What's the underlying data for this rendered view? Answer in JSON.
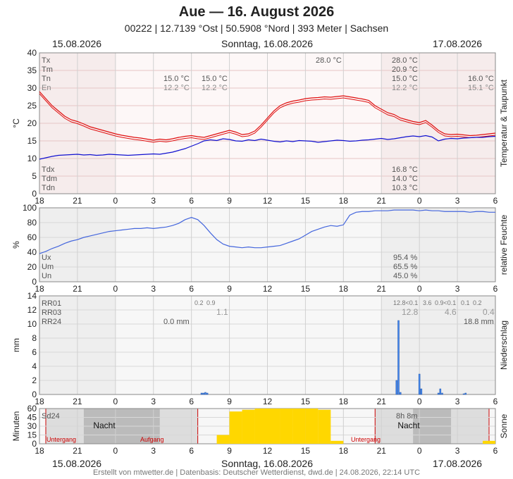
{
  "header": {
    "title": "Aue  —  16. August 2026",
    "subtitle": "00222  |  12.7139 °Ost  |  50.5908 °Nord  |  393 Meter  |  Sachsen",
    "date_left": "15.08.2026",
    "date_center": "Sonntag, 16.08.2026",
    "date_right": "17.08.2026"
  },
  "footer": "Erstellt von mtwetter.de | Datenbasis: Deutscher Wetterdienst, dwd.de | 24.08.2026, 22:14 UTC",
  "colors": {
    "temp": "#e01010",
    "dew": "#1010d0",
    "hum": "#4466dd",
    "rain": "#4488ee",
    "sun": "#ffd700",
    "border_red": "#cc0000"
  },
  "chart_data": [
    {
      "type": "line",
      "id": "temp",
      "ylabel": "°C",
      "ylabel_right": "Temperatur & Taupunkt",
      "x_ticks": [
        "18",
        "21",
        "0",
        "3",
        "6",
        "9",
        "12",
        "15",
        "18",
        "21",
        "0",
        "3",
        "6"
      ],
      "ylim": [
        0,
        40
      ],
      "y_ticks": [
        0,
        5,
        10,
        15,
        20,
        25,
        30,
        35,
        40
      ],
      "x": [
        0,
        0.5,
        1,
        1.5,
        2,
        2.5,
        3,
        3.5,
        4,
        4.5,
        5,
        5.5,
        6,
        6.5,
        7,
        7.5,
        8,
        8.5,
        9,
        9.5,
        10,
        10.5,
        11,
        11.5,
        12,
        12.5,
        13,
        13.5,
        14,
        14.5,
        15,
        15.5,
        16,
        16.5,
        17,
        17.5,
        18,
        18.5,
        19,
        19.5,
        20,
        20.5,
        21,
        21.5,
        22,
        22.5,
        23,
        23.5,
        24,
        24.5,
        25,
        25.5,
        26,
        26.5,
        27,
        27.5,
        28,
        28.5,
        29,
        29.5,
        30,
        30.5,
        31,
        31.5,
        32,
        32.5,
        33,
        33.5,
        34,
        34.5,
        35,
        35.5,
        36
      ],
      "series": [
        {
          "name": "Temperatur",
          "values": [
            29,
            27,
            25,
            23.5,
            22,
            21,
            20.5,
            19.8,
            19,
            18.5,
            18,
            17.5,
            17,
            16.6,
            16.3,
            16,
            15.8,
            15.5,
            15.2,
            15.5,
            15.3,
            15.6,
            16,
            16.3,
            16.5,
            16.2,
            16,
            16.5,
            17,
            17.5,
            18,
            17.5,
            16.8,
            17,
            17.8,
            19.5,
            21.5,
            23.5,
            25,
            25.8,
            26.3,
            26.6,
            27,
            27.2,
            27.3,
            27.5,
            27.4,
            27.6,
            27.8,
            27.5,
            27.2,
            26.9,
            26.5,
            25,
            24,
            23,
            22.5,
            21.5,
            21,
            20.5,
            20.2,
            20.8,
            19.5,
            18,
            17,
            16.8,
            16.9,
            16.7,
            16.5,
            16.6,
            16.8,
            17,
            17.2
          ]
        },
        {
          "name": "Taupunkt",
          "values": [
            9.8,
            10.2,
            10.6,
            10.9,
            11,
            11.1,
            11.2,
            11,
            11.1,
            10.9,
            11,
            11.2,
            11.1,
            11,
            10.9,
            11,
            11.1,
            11.2,
            11.3,
            11.2,
            11.5,
            11.8,
            12.3,
            12.8,
            13.5,
            14.2,
            15,
            15.3,
            15.1,
            15.6,
            15.4,
            15,
            14.9,
            15.3,
            15.1,
            15.5,
            15.2,
            14.9,
            14.7,
            15,
            14.8,
            15.1,
            15,
            14.9,
            14.6,
            14.8,
            15,
            15.2,
            15.1,
            14.9,
            15,
            15.2,
            15.3,
            15.5,
            15.7,
            15.4,
            15.6,
            15.9,
            16.2,
            16.4,
            16.2,
            16.5,
            16.1,
            15,
            15.5,
            15.7,
            15.6,
            15.8,
            15.9,
            16,
            16,
            16.2,
            16.3
          ]
        }
      ],
      "stats_left": [
        {
          "k": "Tx",
          "v": ""
        },
        {
          "k": "Tm",
          "v": ""
        },
        {
          "k": "Tn",
          "v": ""
        },
        {
          "k": "En",
          "v": ""
        }
      ],
      "stats_mid": [
        {
          "a": "15.0 °C",
          "b": "15.0 °C"
        },
        {
          "a": "12.2 °C",
          "b": "12.2 °C"
        }
      ],
      "stats_center_top": "28.0 °C",
      "stats_right": [
        "28.0 °C",
        "20.9 °C",
        "15.0 °C",
        "12.2 °C"
      ],
      "stats_far_right": [
        "16.0 °C",
        "15.1 °C"
      ],
      "dew_left": [
        "Tdx",
        "Tdm",
        "Tdn"
      ],
      "dew_right": [
        "16.8 °C",
        "14.0 °C",
        "10.3 °C"
      ]
    },
    {
      "type": "line",
      "id": "hum",
      "ylabel": "%",
      "ylabel_right": "relative Feuchte",
      "x_ticks": [
        "18",
        "21",
        "0",
        "3",
        "6",
        "9",
        "12",
        "15",
        "18",
        "21",
        "0",
        "3",
        "6"
      ],
      "ylim": [
        0,
        100
      ],
      "y_ticks": [
        0,
        20,
        40,
        60,
        80,
        100
      ],
      "x": [
        0,
        0.5,
        1,
        1.5,
        2,
        2.5,
        3,
        3.5,
        4,
        4.5,
        5,
        5.5,
        6,
        6.5,
        7,
        7.5,
        8,
        8.5,
        9,
        9.5,
        10,
        10.5,
        11,
        11.5,
        12,
        12.5,
        13,
        13.5,
        14,
        14.5,
        15,
        15.5,
        16,
        16.5,
        17,
        17.5,
        18,
        18.5,
        19,
        19.5,
        20,
        20.5,
        21,
        21.5,
        22,
        22.5,
        23,
        23.5,
        24,
        24.5,
        25,
        25.5,
        26,
        26.5,
        27,
        27.5,
        28,
        28.5,
        29,
        29.5,
        30,
        30.5,
        31,
        31.5,
        32,
        32.5,
        33,
        33.5,
        34,
        34.5,
        35,
        35.5,
        36
      ],
      "series": [
        {
          "name": "Feuchte",
          "values": [
            38,
            41,
            45,
            48,
            52,
            55,
            57,
            60,
            62,
            64,
            66,
            68,
            69,
            70,
            71,
            72,
            72,
            73,
            72,
            73,
            74,
            76,
            79,
            84,
            87,
            84,
            76,
            66,
            57,
            51,
            48,
            47,
            46,
            47,
            46,
            46,
            47,
            48,
            49,
            52,
            55,
            58,
            63,
            68,
            71,
            74,
            76,
            75,
            77,
            90,
            94,
            95,
            95,
            96,
            96,
            96,
            97,
            97,
            97,
            97,
            96,
            97,
            96,
            96,
            95,
            95,
            95,
            95,
            94,
            95,
            95,
            94,
            94
          ]
        }
      ],
      "stats_left": [
        "Ux",
        "Um",
        "Un"
      ],
      "stats_right": [
        "95.4 %",
        "65.5 %",
        "45.0 %"
      ]
    },
    {
      "type": "bar",
      "id": "rain",
      "ylabel": "mm",
      "ylabel_right": "Niederschlag",
      "x_ticks": [
        "18",
        "21",
        "0",
        "3",
        "6",
        "9",
        "12",
        "15",
        "18",
        "21",
        "0",
        "3",
        "6"
      ],
      "ylim": [
        0,
        14
      ],
      "y_ticks": [
        0,
        2,
        4,
        6,
        8,
        10,
        12,
        14
      ],
      "bars": [
        {
          "x": 12.8,
          "v": 0.2
        },
        {
          "x": 12.95,
          "v": 0.2
        },
        {
          "x": 13.1,
          "v": 0.3
        },
        {
          "x": 13.25,
          "v": 0.2
        },
        {
          "x": 28.2,
          "v": 2.0
        },
        {
          "x": 28.35,
          "v": 10.5
        },
        {
          "x": 28.5,
          "v": 0.3
        },
        {
          "x": 30.0,
          "v": 2.9
        },
        {
          "x": 30.15,
          "v": 0.8
        },
        {
          "x": 31.5,
          "v": 0.2
        },
        {
          "x": 31.65,
          "v": 0.8
        },
        {
          "x": 31.8,
          "v": 0.2
        },
        {
          "x": 33.5,
          "v": 0.1
        },
        {
          "x": 33.65,
          "v": 0.2
        }
      ],
      "labels_left": [
        "RR01",
        "RR03",
        "RR24"
      ],
      "rr01_day1": [
        "0.2",
        "0.9"
      ],
      "rr03_day1": "1.1",
      "rr24_day1": "0.0 mm",
      "rr01_day2": [
        "12.8<0.1",
        "3.6",
        "0.9<0.1",
        "0.1",
        "0.2"
      ],
      "rr03_day2": [
        "12.8",
        "4.6",
        "0.4"
      ],
      "rr24_day2": "18.8 mm"
    },
    {
      "type": "bar",
      "id": "sun",
      "ylabel": "Minuten",
      "ylabel_right": "Sonne",
      "x_ticks": [
        "18",
        "21",
        "0",
        "3",
        "6",
        "9",
        "12",
        "15",
        "18",
        "21",
        "0",
        "3",
        "6"
      ],
      "ylim": [
        0,
        60
      ],
      "y_ticks": [
        0,
        15,
        30,
        45,
        60
      ],
      "bars": [
        {
          "x": 14,
          "v": 15
        },
        {
          "x": 15,
          "v": 55
        },
        {
          "x": 16,
          "v": 58
        },
        {
          "x": 17,
          "v": 60
        },
        {
          "x": 18,
          "v": 60
        },
        {
          "x": 19,
          "v": 60
        },
        {
          "x": 20,
          "v": 60
        },
        {
          "x": 21,
          "v": 60
        },
        {
          "x": 22,
          "v": 58
        },
        {
          "x": 23,
          "v": 5
        },
        {
          "x": 35,
          "v": 5
        }
      ],
      "label_left": "Sd24",
      "sd_day2": "8h 8m",
      "night_label": "Nacht",
      "untergang": "Untergang",
      "aufgang": "Aufgang"
    }
  ]
}
